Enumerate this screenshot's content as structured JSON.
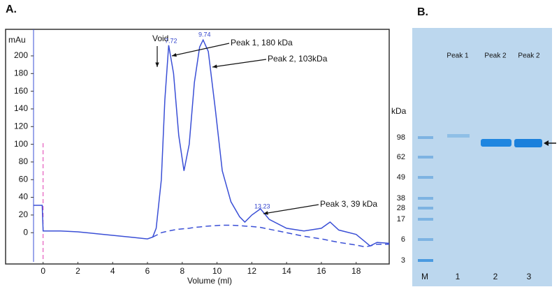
{
  "chart_data": [
    {
      "type": "line",
      "panel_label": "A.",
      "y_label": "mAu",
      "x_label": "Volume (ml)",
      "xlim": [
        -0.55,
        19.9
      ],
      "xticks": [
        0,
        2,
        4,
        6,
        8,
        10,
        12,
        14,
        16,
        18
      ],
      "ylim": [
        -33,
        230
      ],
      "yticks": [
        0,
        20,
        40,
        60,
        80,
        100,
        120,
        140,
        160,
        180,
        200
      ],
      "x": [
        -0.55,
        -0.05,
        0,
        1,
        2,
        3,
        4,
        5,
        6,
        6.3,
        6.5,
        6.8,
        7.0,
        7.22,
        7.5,
        7.8,
        8.1,
        8.4,
        8.7,
        9.0,
        9.2,
        9.5,
        9.9,
        10.3,
        10.8,
        11.3,
        11.6,
        12.0,
        12.5,
        13.0,
        14.0,
        15.0,
        16.0,
        16.5,
        17.0,
        18.0,
        18.5,
        18.8,
        19.2,
        19.9
      ],
      "series": [
        {
          "color": "#3a4fd6",
          "dashed": false,
          "values": [
            31,
            31,
            2,
            2,
            1,
            -1,
            -3,
            -5,
            -7,
            -5,
            5,
            60,
            150,
            212,
            180,
            110,
            70,
            100,
            170,
            210,
            218,
            205,
            140,
            70,
            35,
            18,
            12,
            20,
            27,
            15,
            5,
            2,
            5,
            12,
            3,
            -2,
            -10,
            -15,
            -11,
            -12
          ]
        },
        {
          "color": "#3a4fd6",
          "dashed": true,
          "values": [
            null,
            null,
            null,
            null,
            null,
            null,
            null,
            null,
            null,
            -5,
            -3,
            0,
            1,
            2,
            3,
            4,
            4.5,
            5,
            6,
            6.5,
            7,
            7.5,
            8,
            8.5,
            8.5,
            8,
            7.5,
            7,
            6,
            4,
            0,
            -4,
            -7,
            -9,
            -11,
            -14,
            -16,
            -15,
            -13,
            -13
          ]
        }
      ],
      "annotations": [
        "Void",
        "7.72",
        "9.74",
        "13.23",
        "Peak 1, 180 kDa",
        "Peak 2, 103kDa",
        "Peak 3, 39 kDa"
      ]
    },
    {
      "type": "gel",
      "panel_label": "B.",
      "axis_label": "kDa",
      "markers": [
        98,
        62,
        49,
        38,
        28,
        17,
        6,
        3
      ],
      "lane_titles": [
        "Peak 1",
        "Peak 2",
        "Peak 2"
      ],
      "lanes": [
        "M",
        "1",
        "2",
        "3"
      ]
    }
  ]
}
